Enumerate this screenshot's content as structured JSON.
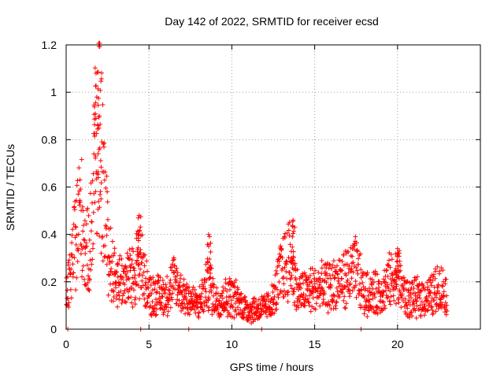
{
  "chart_data": {
    "type": "scatter",
    "title": "Day 142 of 2022, SRMTID for receiver ecsd",
    "xlabel": "GPS time / hours",
    "ylabel": "SRMTID / TECUs",
    "xlim": [
      0,
      25
    ],
    "ylim": [
      0,
      1.2
    ],
    "grid": true,
    "marker": "+",
    "color": "#ff0000",
    "x_ticks": [
      0,
      5,
      10,
      15,
      20
    ],
    "x_tick_labels": [
      "0",
      "5",
      "10",
      "15",
      "20"
    ],
    "y_ticks": [
      0,
      0.2,
      0.4,
      0.6,
      0.8,
      1.0,
      1.2
    ],
    "y_tick_labels": [
      "0",
      "0.2",
      "0.4",
      "0.6",
      "0.8",
      "1",
      "1.2"
    ],
    "series": [
      {
        "name": "SRMTID",
        "envelope": [
          [
            0.0,
            0.14
          ],
          [
            0.2,
            0.2
          ],
          [
            0.4,
            0.3
          ],
          [
            0.6,
            0.4
          ],
          [
            0.8,
            0.5
          ],
          [
            1.0,
            0.45
          ],
          [
            1.2,
            0.3
          ],
          [
            1.4,
            0.35
          ],
          [
            1.6,
            0.5
          ],
          [
            1.8,
            0.85
          ],
          [
            2.0,
            0.8
          ],
          [
            2.2,
            0.65
          ],
          [
            2.4,
            0.45
          ],
          [
            2.6,
            0.32
          ],
          [
            2.8,
            0.25
          ],
          [
            3.0,
            0.22
          ],
          [
            3.5,
            0.2
          ],
          [
            4.0,
            0.22
          ],
          [
            4.4,
            0.3
          ],
          [
            5.0,
            0.15
          ],
          [
            6.0,
            0.14
          ],
          [
            6.5,
            0.2
          ],
          [
            7.0,
            0.15
          ],
          [
            8.0,
            0.1
          ],
          [
            8.6,
            0.2
          ],
          [
            9.0,
            0.12
          ],
          [
            10.0,
            0.14
          ],
          [
            11.0,
            0.08
          ],
          [
            12.0,
            0.09
          ],
          [
            12.5,
            0.12
          ],
          [
            13.0,
            0.25
          ],
          [
            13.5,
            0.3
          ],
          [
            14.0,
            0.15
          ],
          [
            15.0,
            0.17
          ],
          [
            16.0,
            0.18
          ],
          [
            17.0,
            0.22
          ],
          [
            17.5,
            0.25
          ],
          [
            18.0,
            0.15
          ],
          [
            19.0,
            0.15
          ],
          [
            19.5,
            0.2
          ],
          [
            20.0,
            0.22
          ],
          [
            20.5,
            0.13
          ],
          [
            21.0,
            0.13
          ],
          [
            22.0,
            0.14
          ],
          [
            22.5,
            0.18
          ],
          [
            23.0,
            0.15
          ]
        ],
        "peaks": [
          [
            1.8,
            1.08
          ],
          [
            2.0,
            0.9
          ],
          [
            4.4,
            0.48
          ],
          [
            8.6,
            0.4
          ],
          [
            13.7,
            0.46
          ],
          [
            20.0,
            0.34
          ]
        ],
        "zero_points": [
          0.1,
          4.5,
          7.4,
          11.8,
          17.8
        ]
      }
    ]
  }
}
